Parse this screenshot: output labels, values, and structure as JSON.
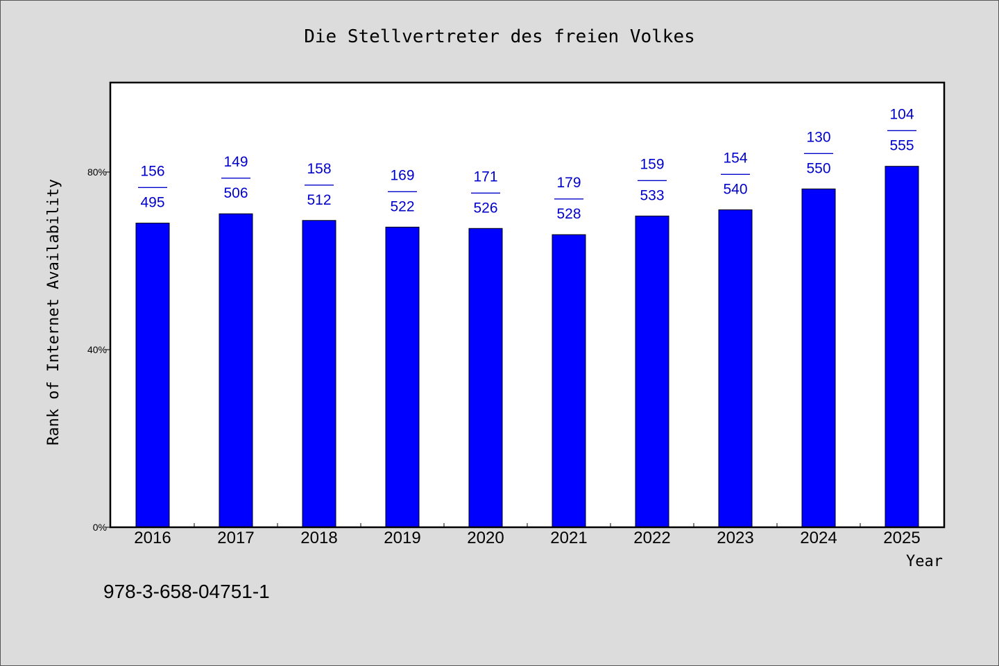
{
  "chart_data": {
    "type": "bar",
    "title": "Die Stellvertreter des freien Volkes",
    "xlabel": "Year",
    "ylabel": "Rank of Internet Availability",
    "ylim": [
      0,
      100
    ],
    "yticks": [
      0,
      40,
      80
    ],
    "ytick_labels": [
      "0%",
      "40%",
      "80%"
    ],
    "categories": [
      "2016",
      "2017",
      "2018",
      "2019",
      "2020",
      "2021",
      "2022",
      "2023",
      "2024",
      "2025"
    ],
    "values": [
      68.5,
      70.6,
      69.1,
      67.6,
      67.3,
      65.9,
      70.1,
      71.5,
      76.2,
      81.3
    ],
    "rank": [
      156,
      149,
      158,
      169,
      171,
      179,
      159,
      154,
      130,
      104
    ],
    "total": [
      495,
      506,
      512,
      522,
      526,
      528,
      533,
      540,
      550,
      555
    ],
    "label_separator": "——",
    "bar_color": "#0000ff",
    "label_color": "#0000cc",
    "grid": false
  },
  "footer": {
    "isbn": "978-3-658-04751-1"
  }
}
